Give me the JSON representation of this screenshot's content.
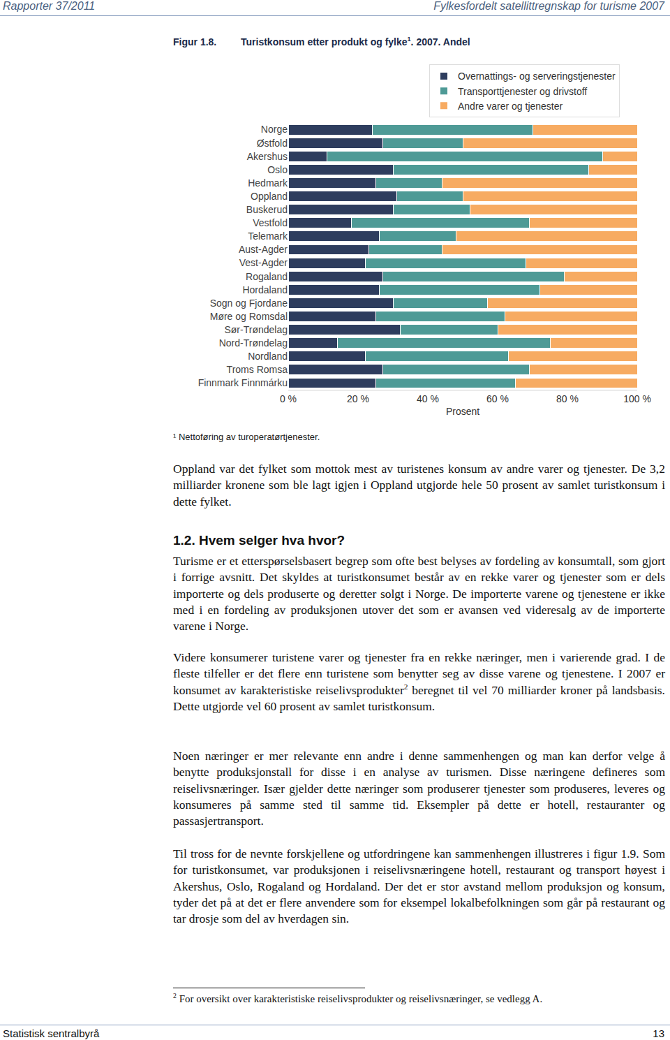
{
  "header": {
    "left": "Rapporter 37/2011",
    "right": "Fylkesfordelt satellittregnskap for turisme 2007"
  },
  "figure": {
    "label": "Figur 1.8.",
    "title": [
      {
        "text": "Turistkonsum etter produkt og fylke"
      },
      {
        "sup": "1"
      },
      {
        "text": ". 2007. Andel"
      }
    ],
    "note": "¹ Nettoføring av turoperatørtjenester."
  },
  "chart_data": {
    "type": "bar",
    "orientation": "horizontal",
    "stacked": true,
    "grid": false,
    "legend": "top right",
    "x_label": "Prosent",
    "xlim": [
      0,
      100
    ],
    "xticks": [
      {
        "value": 0,
        "label": "0 %"
      },
      {
        "value": 20,
        "label": "20 %"
      },
      {
        "value": 40,
        "label": "40 %"
      },
      {
        "value": 60,
        "label": "60 %"
      },
      {
        "value": 80,
        "label": "80 %"
      },
      {
        "value": 100,
        "label": "100 %"
      }
    ],
    "categories": [
      "Norge",
      "Østfold",
      "Akershus",
      "Oslo",
      "Hedmark",
      "Oppland",
      "Buskerud",
      "Vestfold",
      "Telemark",
      "Aust-Agder",
      "Vest-Agder",
      "Rogaland",
      "Hordaland",
      "Sogn og Fjordane",
      "Møre og Romsdal",
      "Sør-Trøndelag",
      "Nord-Trøndelag",
      "Nordland",
      "Troms Romsa",
      "Finnmark Finnmárku"
    ],
    "series": [
      {
        "name": "Overnattings- og serveringstjenester",
        "color": "#2e3d5e",
        "values": [
          24,
          27,
          11,
          30,
          25,
          31,
          30,
          18,
          26,
          23,
          22,
          27,
          26,
          30,
          25,
          32,
          14,
          22,
          27,
          25
        ]
      },
      {
        "name": "Transporttjenester og drivstoff",
        "color": "#4e9a96",
        "values": [
          46,
          23,
          79,
          56,
          19,
          19,
          22,
          51,
          22,
          21,
          46,
          52,
          46,
          27,
          37,
          28,
          61,
          41,
          42,
          40
        ]
      },
      {
        "name": "Andre varer og tjenester",
        "color": "#f7ab62",
        "values": [
          30,
          50,
          10,
          14,
          56,
          50,
          48,
          31,
          52,
          56,
          32,
          21,
          28,
          43,
          38,
          40,
          25,
          37,
          31,
          35
        ]
      }
    ]
  },
  "body": [
    {
      "kind": "p",
      "segments": [
        {
          "text": "Oppland var det fylket som mottok mest av turistenes konsum av andre varer og tjenester. De 3,2 milliarder kronene som ble lagt igjen i Oppland utgjorde hele 50 prosent av samlet turistkonsum i dette fylket."
        }
      ]
    },
    {
      "kind": "h",
      "segments": [
        {
          "text": "1.2. Hvem selger hva hvor?"
        }
      ]
    },
    {
      "kind": "p",
      "segments": [
        {
          "text": "Turisme er et etterspørselsbasert begrep som ofte best belyses av fordeling av konsumtall, som gjort i forrige avsnitt. Det skyldes at turistkonsumet består av en rekke varer og tjenester som er dels importerte og dels produserte og deretter solgt i Norge. De importerte varene og tjenestene er ikke med i en fordeling av produksjonen utover det som er avansen ved videresalg av de importerte varene i Norge."
        }
      ]
    },
    {
      "kind": "p",
      "segments": [
        {
          "text": "Videre konsumerer turistene varer og tjenester fra en rekke næringer, men i varierende grad. I de fleste tilfeller er det flere enn turistene som benytter seg av disse varene og tjenestene. I 2007 er konsumet av karakteristiske reiselivsprodukter"
        },
        {
          "sup": "2"
        },
        {
          "text": " beregnet til vel 70 milliarder kroner på landsbasis. Dette utgjorde vel 60 prosent av samlet turistkonsum."
        }
      ]
    },
    {
      "kind": "p",
      "segments": [
        {
          "text": "Noen næringer er mer relevante enn andre i denne sammenhengen og man kan derfor velge å benytte produksjonstall for disse i en analyse av turismen. Disse næringene defineres som reiselivsnæringer. Især gjelder dette næringer som produserer tjenester som produseres, leveres og konsumeres på samme sted til samme tid. Eksempler på dette er hotell, restauranter og passasjertransport."
        }
      ]
    },
    {
      "kind": "p",
      "segments": [
        {
          "text": "Til tross for de nevnte forskjellene og utfordringene kan sammenhengen illustreres i figur 1.9. Som for turistkonsumet, var produksjonen i reiselivsnæringene hotell, restaurant og transport høyest i Akershus, Oslo, Rogaland og Hordaland. Der det er stor avstand mellom produksjon og konsum, tyder det på at det er flere anvendere som for eksempel lokalbefolkningen som går på restaurant og tar drosje som del av hverdagen sin."
        }
      ]
    }
  ],
  "footnote": [
    {
      "sup": "2"
    },
    {
      "text": " For oversikt over karakteristiske reiselivsprodukter og reiselivsnæringer, se vedlegg A."
    }
  ],
  "footer": {
    "left": "Statistisk sentralbyrå",
    "right": "13"
  }
}
